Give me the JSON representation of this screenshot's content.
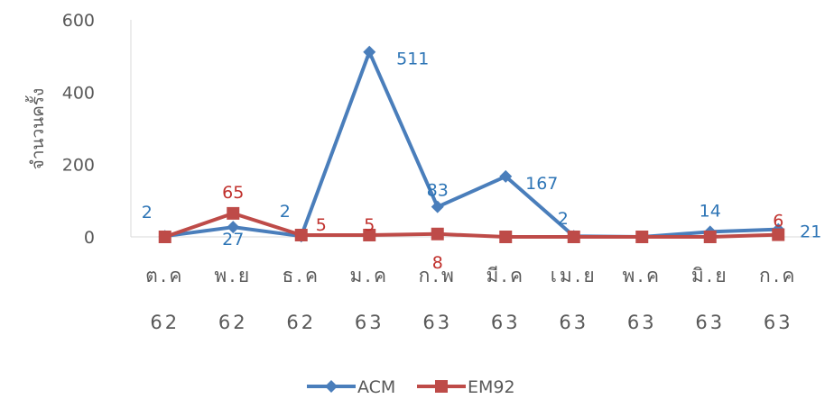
{
  "chart_data": {
    "type": "line",
    "ylabel": "จำนวนครั้ง",
    "ylim": [
      0,
      600
    ],
    "yticks": [
      "0",
      "200",
      "400",
      "600"
    ],
    "grid": false,
    "legend_position": "bottom",
    "categories": [
      {
        "month": "ต.ค",
        "year": "62"
      },
      {
        "month": "พ.ย",
        "year": "62"
      },
      {
        "month": "ธ.ค",
        "year": "62"
      },
      {
        "month": "ม.ค",
        "year": "63"
      },
      {
        "month": "ก.พ",
        "year": "63"
      },
      {
        "month": "มี.ค",
        "year": "63"
      },
      {
        "month": "เม.ย",
        "year": "63"
      },
      {
        "month": "พ.ค",
        "year": "63"
      },
      {
        "month": "มิ.ย",
        "year": "63"
      },
      {
        "month": "ก.ค",
        "year": "63"
      }
    ],
    "series": [
      {
        "name": "ACM",
        "color": "#4a7ebb",
        "label_color": "#2e75b6",
        "marker": "diamond",
        "values": [
          2,
          27,
          2,
          511,
          83,
          167,
          2,
          0,
          14,
          21
        ],
        "data_labels": [
          "2",
          "27",
          "2",
          "511",
          "83",
          "167",
          "2",
          "",
          "14",
          "21"
        ]
      },
      {
        "name": "EM92",
        "color": "#be4b48",
        "label_color": "#c0302c",
        "marker": "square",
        "values": [
          0,
          65,
          5,
          5,
          8,
          0,
          0,
          0,
          0,
          6
        ],
        "data_labels": [
          "",
          "65",
          "5",
          "5",
          "8",
          "",
          "",
          "",
          "",
          "6"
        ]
      }
    ]
  }
}
